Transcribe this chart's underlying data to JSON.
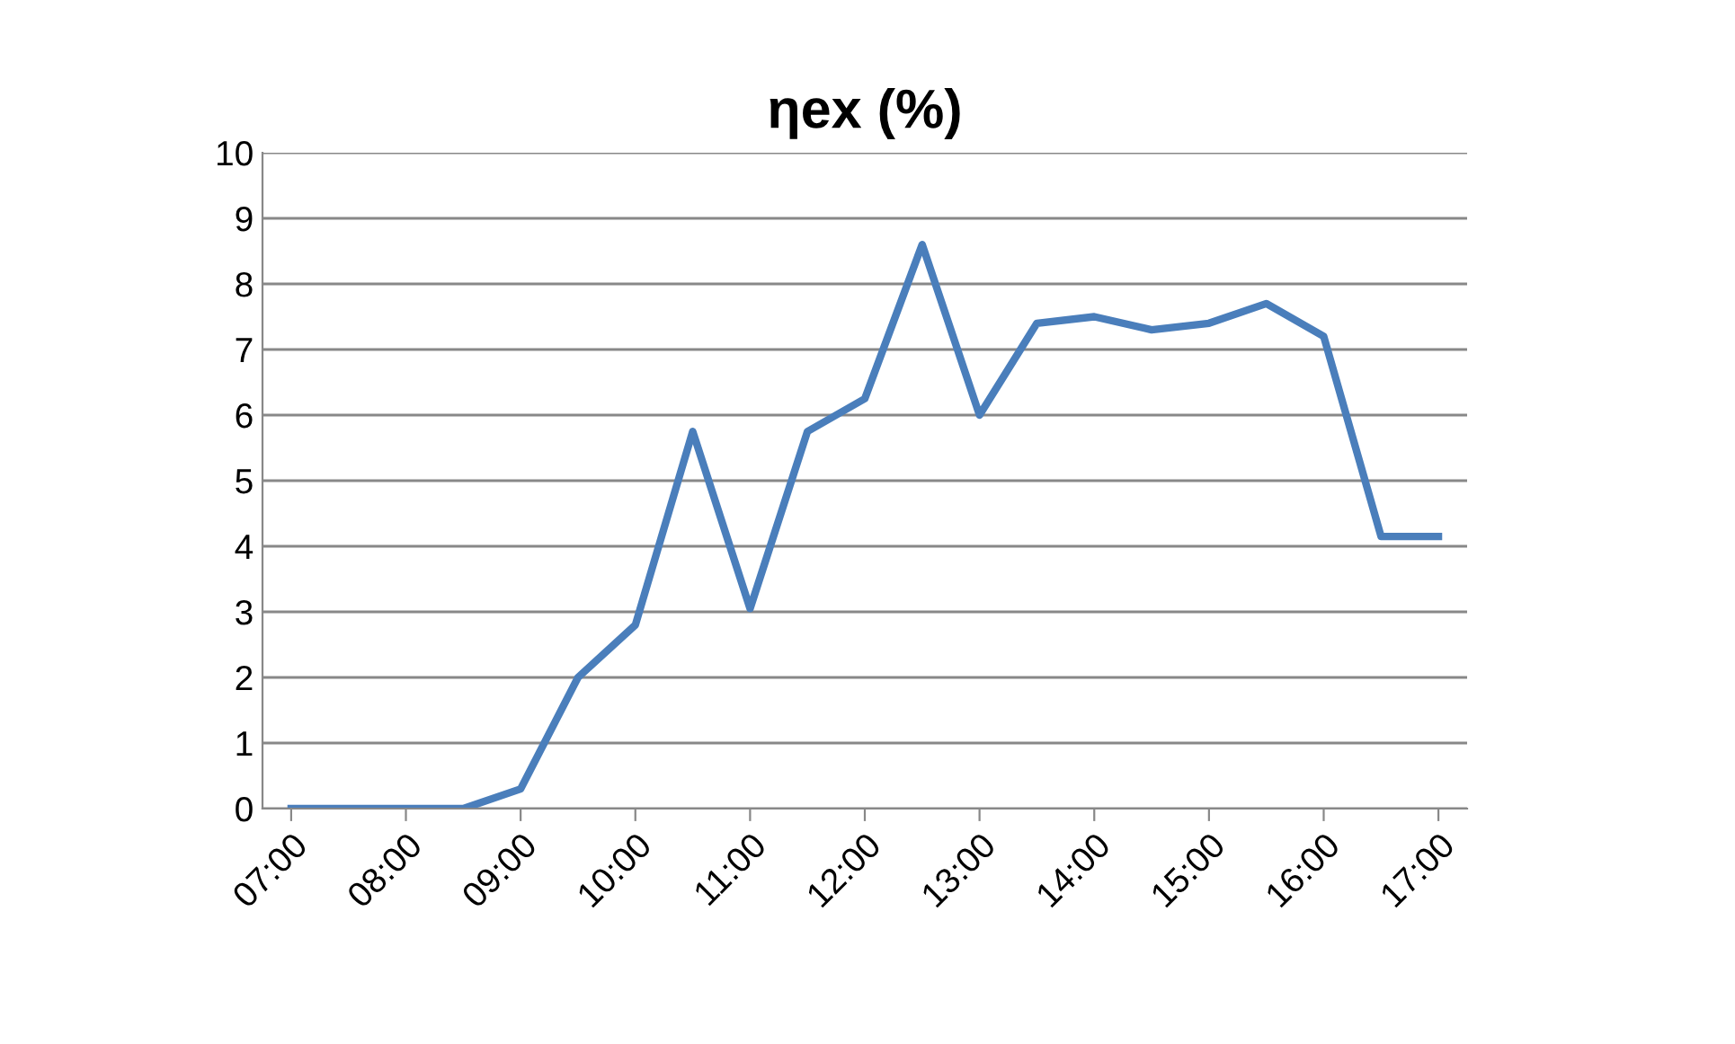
{
  "chart_data": {
    "type": "line",
    "title": "ηex (%)",
    "x": [
      7,
      7.5,
      8,
      8.5,
      9,
      9.5,
      10,
      10.5,
      11,
      11.5,
      12,
      12.5,
      13,
      13.5,
      14,
      14.5,
      15,
      15.5,
      16,
      16.5,
      17
    ],
    "series": [
      {
        "color": "#4a7ebb",
        "values": [
          0,
          0,
          0,
          0,
          0.3,
          2.0,
          2.8,
          5.75,
          3.05,
          5.75,
          6.25,
          8.6,
          6.0,
          7.4,
          7.5,
          7.3,
          7.4,
          7.7,
          7.2,
          4.15,
          4.15
        ]
      }
    ],
    "xlim": [
      6.75,
      17.25
    ],
    "xticks": [
      {
        "value": 7,
        "label": "07:00"
      },
      {
        "value": 8,
        "label": "08:00"
      },
      {
        "value": 9,
        "label": "09:00"
      },
      {
        "value": 10,
        "label": "10:00"
      },
      {
        "value": 11,
        "label": "11:00"
      },
      {
        "value": 12,
        "label": "12:00"
      },
      {
        "value": 13,
        "label": "13:00"
      },
      {
        "value": 14,
        "label": "14:00"
      },
      {
        "value": 15,
        "label": "15:00"
      },
      {
        "value": 16,
        "label": "16:00"
      },
      {
        "value": 17,
        "label": "17:00"
      }
    ],
    "ylim": [
      0,
      10
    ],
    "yticks": [
      0,
      1,
      2,
      3,
      4,
      5,
      6,
      7,
      8,
      9,
      10
    ],
    "grid": "y",
    "legend": false,
    "marker": "none",
    "line_style": "solid"
  }
}
